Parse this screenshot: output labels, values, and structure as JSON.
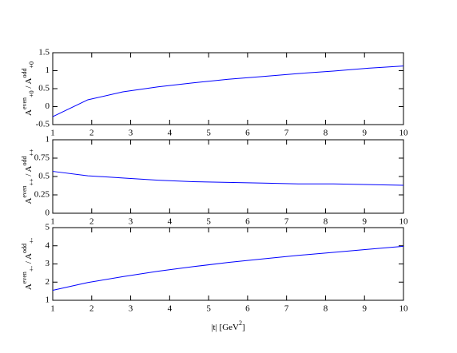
{
  "chart_data": [
    {
      "type": "line",
      "ylabel": [
        {
          "text": "A"
        },
        {
          "text": "even",
          "shift": "super"
        },
        {
          "text": "+0",
          "shift": "sub"
        },
        {
          "text": " / A"
        },
        {
          "text": "odd",
          "shift": "super"
        },
        {
          "text": "+0",
          "shift": "sub"
        }
      ],
      "x": [
        1,
        1.9,
        2.8,
        3.7,
        4.6,
        5.5,
        6.4,
        7.3,
        8.2,
        9.1,
        10
      ],
      "values": [
        -0.28,
        0.19,
        0.41,
        0.55,
        0.66,
        0.76,
        0.84,
        0.92,
        0.99,
        1.07,
        1.13
      ],
      "color": "#0000ff",
      "xlim": [
        1,
        10
      ],
      "xticks": [
        1,
        2,
        3,
        4,
        5,
        6,
        7,
        8,
        9,
        10
      ],
      "ylim": [
        -0.5,
        1.5
      ],
      "yticks": [
        -0.5,
        0,
        0.5,
        1,
        1.5
      ]
    },
    {
      "type": "line",
      "ylabel": [
        {
          "text": "A"
        },
        {
          "text": "even",
          "shift": "super"
        },
        {
          "text": "++",
          "shift": "sub"
        },
        {
          "text": " / A"
        },
        {
          "text": "odd",
          "shift": "super"
        },
        {
          "text": "++",
          "shift": "sub"
        }
      ],
      "x": [
        1,
        1.9,
        2.8,
        3.7,
        4.6,
        5.5,
        6.4,
        7.3,
        8.2,
        9.1,
        10
      ],
      "values": [
        0.57,
        0.51,
        0.48,
        0.45,
        0.43,
        0.42,
        0.41,
        0.4,
        0.4,
        0.39,
        0.38
      ],
      "color": "#0000ff",
      "xlim": [
        1,
        10
      ],
      "xticks": [
        1,
        2,
        3,
        4,
        5,
        6,
        7,
        8,
        9,
        10
      ],
      "ylim": [
        0,
        1
      ],
      "yticks": [
        0,
        0.25,
        0.5,
        0.75,
        1
      ]
    },
    {
      "type": "line",
      "ylabel": [
        {
          "text": "A"
        },
        {
          "text": "even",
          "shift": "super"
        },
        {
          "text": "+-",
          "shift": "sub"
        },
        {
          "text": " / A"
        },
        {
          "text": "odd",
          "shift": "super"
        },
        {
          "text": "+-",
          "shift": "sub"
        }
      ],
      "xlabel": [
        {
          "text": "|t|    [GeV"
        },
        {
          "text": "2",
          "shift": "super"
        },
        {
          "text": "]"
        }
      ],
      "x": [
        1,
        1.9,
        2.8,
        3.7,
        4.6,
        5.5,
        6.4,
        7.3,
        8.2,
        9.1,
        10
      ],
      "values": [
        1.55,
        1.98,
        2.3,
        2.6,
        2.85,
        3.08,
        3.28,
        3.47,
        3.64,
        3.81,
        3.97
      ],
      "color": "#0000ff",
      "xlim": [
        1,
        10
      ],
      "xticks": [
        1,
        2,
        3,
        4,
        5,
        6,
        7,
        8,
        9,
        10
      ],
      "ylim": [
        1,
        5
      ],
      "yticks": [
        1,
        2,
        3,
        4,
        5
      ]
    }
  ]
}
